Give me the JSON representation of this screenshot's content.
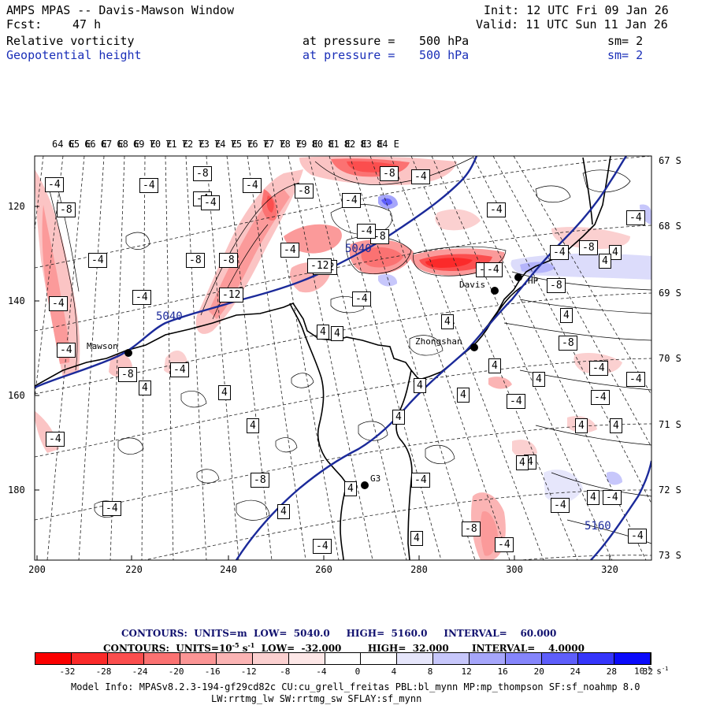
{
  "header": {
    "title": "AMPS MPAS -- Davis-Mawson Window",
    "fcst_label": "Fcst:",
    "fcst_value": "47 h",
    "init": "Init: 12 UTC Fri 09 Jan 26",
    "valid": "Valid: 11 UTC Sun 11 Jan 26",
    "field1": {
      "name": "Relative vorticity",
      "at": "at pressure =",
      "level": "500 hPa",
      "sm": "sm= 2"
    },
    "field2": {
      "name": "Geopotential height",
      "at": "at pressure =",
      "level": "500 hPa",
      "sm": "sm= 2"
    }
  },
  "map": {
    "lon_labels": [
      "64 E",
      "65 E",
      "66 E",
      "67 E",
      "68 E",
      "69 E",
      "70 E",
      "71 E",
      "72 E",
      "73 E",
      "74 E",
      "75 E",
      "76 E",
      "77 E",
      "78 E",
      "79 E",
      "80 E",
      "81 E",
      "82 E",
      "83 E",
      "84 E"
    ],
    "lat_labels": [
      "67 S",
      "68 S",
      "69 S",
      "70 S",
      "71 S",
      "72 S",
      "73 S"
    ],
    "y_ticks": [
      "120",
      "140",
      "160",
      "180"
    ],
    "x_ticks": [
      "200",
      "220",
      "240",
      "260",
      "280",
      "300",
      "320"
    ],
    "stations": [
      {
        "name": "Mawson"
      },
      {
        "name": "Zhongshan"
      },
      {
        "name": "Davis"
      },
      {
        "name": "HP"
      },
      {
        "name": "G3"
      }
    ],
    "height_labels": [
      "5040",
      "5040",
      "5160"
    ],
    "contour_labels": [
      "-4",
      "-8",
      "-4",
      "-4",
      "-8",
      "-4",
      "-4",
      "-8",
      "-8",
      "-4",
      "-4",
      "-4",
      "-8",
      "-12",
      "-8",
      "-8",
      "-4",
      "-4",
      "-4",
      "-4",
      "-8",
      "-4",
      "-4",
      "-4",
      "-4",
      "4",
      "-12",
      "-12",
      "-8",
      "-4",
      "-4",
      "4",
      "-8",
      "-4",
      "4",
      "4",
      "-8",
      "-4",
      "4",
      "4",
      "4",
      "4",
      "-4",
      "-4",
      "-4",
      "4",
      "4",
      "4",
      "4",
      "-4",
      "4",
      "-8",
      "-4",
      "4",
      "-4",
      "-4",
      "-8",
      "-4",
      "-4",
      "4",
      "-4",
      "4",
      "4",
      "4",
      "4",
      "4",
      "-4",
      "-8",
      "4",
      "4"
    ],
    "colors": {
      "height_contour": "#1b2a9a",
      "coast": "#000000"
    }
  },
  "legend": {
    "contours1": "CONTOURS:  UNITS=m  LOW=  5040.0     HIGH=  5160.0     INTERVAL=    60.000",
    "contours2_prefix": "CONTOURS:  UNITS=10",
    "contours2_exp": "-5",
    "contours2_unit": " s",
    "contours2_unit_exp": "-1",
    "contours2_rest": "  LOW=  -32.000        HIGH=  32.000       INTERVAL=    4.0000",
    "bar_labels": [
      "-32",
      "-28",
      "-24",
      "-20",
      "-16",
      "-12",
      "-8",
      "-4",
      "0",
      "4",
      "8",
      "12",
      "16",
      "20",
      "24",
      "28",
      "32"
    ],
    "bar_unit": "10",
    "bar_unit_exp1": "-5",
    "bar_unit_s": " s",
    "bar_unit_exp2": "-1",
    "bar_colors": [
      "#fb0000",
      "#fb2a2a",
      "#fb4e4e",
      "#fb7272",
      "#fb9595",
      "#fbb4b4",
      "#fbd0d0",
      "#fde7e7",
      "#ffffff",
      "#ffffff",
      "#e6e6fb",
      "#c7c7fb",
      "#a6a6fb",
      "#8585fb",
      "#5e5efb",
      "#3535fb",
      "#0a0afb"
    ]
  },
  "footer": {
    "line1": "Model Info: MPASv8.2.3-194-gf29cd82c CU:cu_grell_freitas PBL:bl_mynn MP:mp_thompson SF:sf_noahmp 8.0",
    "line2": "LW:rrtmg_lw SW:rrtmg_sw SFLAY:sf_mynn"
  }
}
